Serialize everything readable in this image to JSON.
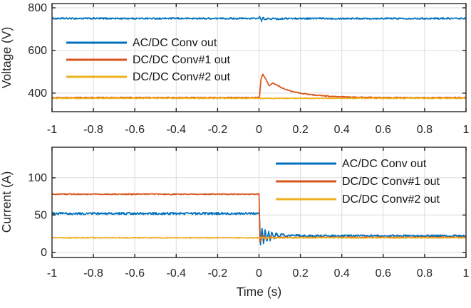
{
  "figure": {
    "background": "#ffffff",
    "axis_color": "#252525",
    "grid_color": "#dbdbdb",
    "tick_label_color": "#252525",
    "series_colors": {
      "blue": "#0072BD",
      "orange": "#D95319",
      "yellow": "#EDB120"
    }
  },
  "chart_data": [
    {
      "type": "line",
      "title": "",
      "xlabel": "",
      "ylabel": "Voltage (V)",
      "xlim": [
        -1,
        1
      ],
      "ylim": [
        313,
        820
      ],
      "grid": true,
      "legend_position": "upper-left-inside",
      "xticks": [
        -1,
        -0.8,
        -0.6,
        -0.4,
        -0.2,
        0,
        0.2,
        0.4,
        0.6,
        0.8,
        1
      ],
      "xtick_labels": [
        "-1",
        "-0.8",
        "-0.6",
        "-0.4",
        "-0.2",
        "0",
        "0.2",
        "0.4",
        "0.6",
        "0.8",
        "1"
      ],
      "yticks": [
        400,
        600,
        800
      ],
      "ytick_labels": [
        "400",
        "600",
        "800"
      ],
      "series": [
        {
          "name": "AC/DC Conv out",
          "color": "#0072BD",
          "noise": 3.5,
          "points": [
            [
              -1,
              750
            ],
            [
              -0.005,
              750
            ],
            [
              0.004,
              758
            ],
            [
              0.012,
              739
            ],
            [
              0.02,
              754
            ],
            [
              0.03,
              742
            ],
            [
              0.042,
              752
            ],
            [
              0.056,
              745
            ],
            [
              0.072,
              752
            ],
            [
              0.09,
              747
            ],
            [
              0.12,
              750
            ],
            [
              1,
              750
            ]
          ]
        },
        {
          "name": "DC/DC Conv#1 out",
          "color": "#D95319",
          "noise": 2.2,
          "points": [
            [
              -1,
              379
            ],
            [
              0.002,
              379
            ],
            [
              0.01,
              468
            ],
            [
              0.018,
              488
            ],
            [
              0.03,
              471
            ],
            [
              0.05,
              434
            ],
            [
              0.065,
              447
            ],
            [
              0.08,
              442
            ],
            [
              0.11,
              424
            ],
            [
              0.15,
              410
            ],
            [
              0.2,
              400
            ],
            [
              0.25,
              393
            ],
            [
              0.3,
              388
            ],
            [
              0.36,
              384
            ],
            [
              0.45,
              381
            ],
            [
              0.6,
              379
            ],
            [
              1,
              379
            ]
          ]
        },
        {
          "name": "DC/DC Conv#2 out",
          "color": "#EDB120",
          "noise": 2.2,
          "points": [
            [
              -1,
              376
            ],
            [
              1,
              376
            ]
          ]
        }
      ]
    },
    {
      "type": "line",
      "title": "",
      "xlabel": "Time (s)",
      "ylabel": "Current (A)",
      "xlim": [
        -1,
        1
      ],
      "ylim": [
        -7,
        141
      ],
      "grid": true,
      "legend_position": "upper-right-inside",
      "xticks": [
        -1,
        -0.8,
        -0.6,
        -0.4,
        -0.2,
        0,
        0.2,
        0.4,
        0.6,
        0.8,
        1
      ],
      "xtick_labels": [
        "-1",
        "-0.8",
        "-0.6",
        "-0.4",
        "-0.2",
        "0",
        "0.2",
        "0.4",
        "0.6",
        "0.8",
        "1"
      ],
      "yticks": [
        0,
        50,
        100
      ],
      "ytick_labels": [
        "0",
        "50",
        "100"
      ],
      "series": [
        {
          "name": "AC/DC Conv out",
          "color": "#0072BD",
          "noise": 1.4,
          "points": [
            [
              -1,
              52
            ],
            [
              0.002,
              52
            ],
            [
              0.007,
              9
            ],
            [
              0.014,
              33
            ],
            [
              0.022,
              11
            ],
            [
              0.03,
              31
            ],
            [
              0.038,
              14
            ],
            [
              0.046,
              29
            ],
            [
              0.054,
              16
            ],
            [
              0.062,
              27
            ],
            [
              0.072,
              18
            ],
            [
              0.082,
              26
            ],
            [
              0.095,
              20
            ],
            [
              0.11,
              25
            ],
            [
              0.13,
              21.5
            ],
            [
              0.16,
              23.5
            ],
            [
              0.2,
              22
            ],
            [
              1,
              22
            ]
          ]
        },
        {
          "name": "DC/DC Conv#1 out",
          "color": "#D95319",
          "noise": 0.7,
          "points": [
            [
              -1,
              78
            ],
            [
              0.001,
              78
            ],
            [
              0.004,
              13
            ],
            [
              0.02,
              23
            ],
            [
              0.035,
              17.5
            ],
            [
              0.055,
              21
            ],
            [
              0.08,
              19.5
            ],
            [
              0.12,
              20
            ],
            [
              1,
              20
            ]
          ]
        },
        {
          "name": "DC/DC Conv#2 out",
          "color": "#EDB120",
          "noise": 0.7,
          "points": [
            [
              -1,
              19.5
            ],
            [
              1,
              19.5
            ]
          ]
        }
      ]
    }
  ]
}
